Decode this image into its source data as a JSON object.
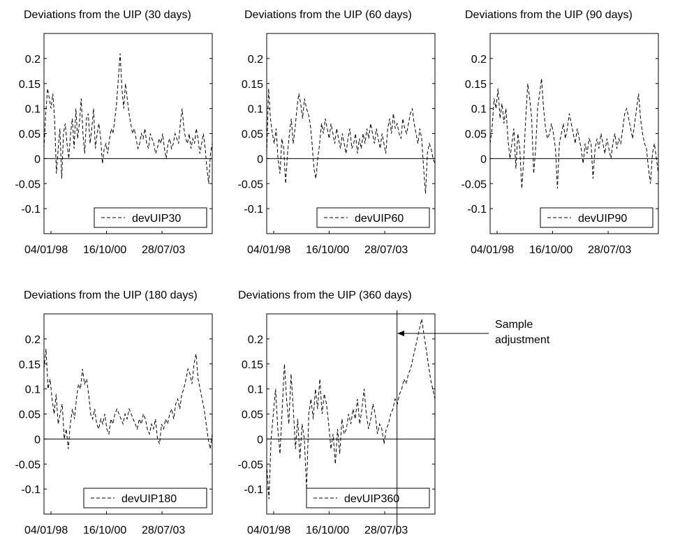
{
  "chart_data": [
    {
      "type": "line",
      "title": "Deviations from the UIP (30 days)",
      "xlabel": "",
      "ylabel": "",
      "xticks": [
        "04/01/98",
        "16/10/00",
        "28/07/03"
      ],
      "yticks": [
        "0.2",
        "0.15",
        "0.1",
        "0.05",
        "0",
        "-0.05",
        "-0.1"
      ],
      "ylim": [
        -0.15,
        0.25
      ],
      "grid": false,
      "legend_position": "bottom-right",
      "series": [
        {
          "name": "devUIP30",
          "style": "dashed",
          "values": [
            0.02,
            0.09,
            0.14,
            0.12,
            0.1,
            0.13,
            0.08,
            -0.03,
            0.02,
            0.06,
            -0.04,
            0.05,
            0.07,
            0.03,
            0.0,
            0.05,
            0.08,
            0.02,
            0.1,
            0.04,
            0.07,
            0.12,
            0.05,
            0.01,
            0.08,
            0.09,
            0.03,
            0.06,
            0.1,
            0.02,
            0.05,
            0.07,
            0.04,
            -0.01,
            0.02,
            0.03,
            0.01,
            0.04,
            0.06,
            0.05,
            0.08,
            0.11,
            0.16,
            0.21,
            0.14,
            0.1,
            0.15,
            0.12,
            0.09,
            0.07,
            0.05,
            0.06,
            0.04,
            0.02,
            0.03,
            0.05,
            0.04,
            0.06,
            0.03,
            0.02,
            0.05,
            0.04,
            0.03,
            0.01,
            0.02,
            0.04,
            0.03,
            0.05,
            0.02,
            0.0,
            0.03,
            0.04,
            0.02,
            0.03,
            0.05,
            0.04,
            0.03,
            0.07,
            0.1,
            0.06,
            0.04,
            0.03,
            0.05,
            0.02,
            0.04,
            0.03,
            0.06,
            0.04,
            0.01,
            0.03,
            0.05,
            0.02,
            -0.02,
            -0.05,
            0.01,
            0.03
          ]
        }
      ]
    },
    {
      "type": "line",
      "title": "Deviations from the UIP (60 days)",
      "xlabel": "",
      "ylabel": "",
      "xticks": [
        "04/01/98",
        "16/10/00",
        "28/07/03"
      ],
      "yticks": [
        "0.2",
        "0.15",
        "0.1",
        "0.05",
        "0",
        "-0.05",
        "-0.1"
      ],
      "ylim": [
        -0.15,
        0.25
      ],
      "grid": false,
      "legend_position": "bottom-right",
      "series": [
        {
          "name": "devUIP60",
          "style": "dashed",
          "values": [
            0.01,
            0.14,
            0.08,
            0.05,
            0.03,
            0.06,
            0.0,
            -0.03,
            0.04,
            0.02,
            -0.05,
            0.01,
            0.05,
            0.08,
            0.03,
            0.06,
            0.1,
            0.13,
            0.11,
            0.08,
            0.12,
            0.1,
            0.09,
            0.07,
            0.03,
            -0.02,
            -0.04,
            0.0,
            0.03,
            0.07,
            0.05,
            0.08,
            0.06,
            0.04,
            0.07,
            0.05,
            0.03,
            0.06,
            0.04,
            0.02,
            0.05,
            0.03,
            0.01,
            0.04,
            0.06,
            0.02,
            0.03,
            0.05,
            0.01,
            0.04,
            0.02,
            0.05,
            0.03,
            0.06,
            0.04,
            0.07,
            0.05,
            0.03,
            0.06,
            0.04,
            0.02,
            0.05,
            0.03,
            0.01,
            0.06,
            0.08,
            0.05,
            0.09,
            0.06,
            0.07,
            0.05,
            0.04,
            0.08,
            0.06,
            0.05,
            0.07,
            0.09,
            0.1,
            0.07,
            0.05,
            0.03,
            0.06,
            0.04,
            -0.02,
            -0.07,
            0.01,
            0.03,
            0.02,
            0.0,
            -0.01
          ]
        }
      ]
    },
    {
      "type": "line",
      "title": "Deviations from the UIP (90 days)",
      "xlabel": "",
      "ylabel": "",
      "xticks": [
        "04/01/98",
        "16/10/00",
        "28/07/03"
      ],
      "yticks": [
        "0.2",
        "0.15",
        "0.1",
        "0.05",
        "0",
        "-0.05",
        "-0.1"
      ],
      "ylim": [
        -0.15,
        0.25
      ],
      "grid": false,
      "legend_position": "bottom-right",
      "series": [
        {
          "name": "devUIP90",
          "style": "dashed",
          "values": [
            0.03,
            0.06,
            0.12,
            0.1,
            0.14,
            0.08,
            0.11,
            0.07,
            0.1,
            0.04,
            0.0,
            0.03,
            0.06,
            -0.02,
            0.05,
            0.02,
            -0.06,
            0.0,
            0.08,
            0.15,
            0.12,
            0.08,
            -0.03,
            0.02,
            0.1,
            0.13,
            0.16,
            0.1,
            0.06,
            0.04,
            0.05,
            0.07,
            0.05,
            0.02,
            -0.06,
            0.03,
            0.05,
            0.07,
            0.04,
            0.06,
            0.09,
            0.07,
            0.05,
            0.03,
            0.06,
            0.04,
            0.02,
            -0.01,
            0.03,
            0.01,
            0.04,
            0.03,
            -0.04,
            0.02,
            0.04,
            0.02,
            0.05,
            0.03,
            0.01,
            0.04,
            0.02,
            0.0,
            0.03,
            0.05,
            0.02,
            0.04,
            0.03,
            0.06,
            0.09,
            0.1,
            0.08,
            0.06,
            0.04,
            0.07,
            0.1,
            0.13,
            0.08,
            0.05,
            0.03,
            0.02,
            -0.02,
            -0.05,
            0.01,
            0.03,
            0.0,
            -0.03
          ]
        }
      ]
    },
    {
      "type": "line",
      "title": "Deviations from the UIP (180 days)",
      "xlabel": "",
      "ylabel": "",
      "xticks": [
        "04/01/98",
        "16/10/00",
        "28/07/03"
      ],
      "yticks": [
        "0.2",
        "0.15",
        "0.1",
        "0.05",
        "0",
        "-0.05",
        "-0.1"
      ],
      "ylim": [
        -0.15,
        0.25
      ],
      "grid": false,
      "legend_position": "bottom-right",
      "series": [
        {
          "name": "devUIP180",
          "style": "dashed",
          "values": [
            0.14,
            0.18,
            0.1,
            0.12,
            0.08,
            0.05,
            0.09,
            0.03,
            0.05,
            0.07,
            0.0,
            0.02,
            -0.02,
            0.03,
            0.06,
            0.04,
            0.08,
            0.11,
            0.1,
            0.14,
            0.11,
            0.12,
            0.09,
            0.05,
            0.04,
            0.06,
            0.03,
            0.02,
            0.04,
            0.03,
            0.05,
            0.02,
            0.01,
            0.04,
            0.03,
            0.05,
            0.06,
            0.05,
            0.04,
            0.03,
            0.05,
            0.04,
            0.06,
            0.05,
            0.04,
            0.03,
            0.02,
            0.04,
            0.03,
            0.05,
            0.04,
            0.02,
            0.01,
            0.03,
            0.02,
            0.04,
            0.0,
            -0.01,
            0.03,
            0.02,
            0.04,
            0.03,
            0.05,
            0.06,
            0.04,
            0.07,
            0.08,
            0.06,
            0.09,
            0.1,
            0.12,
            0.14,
            0.13,
            0.11,
            0.15,
            0.17,
            0.12,
            0.1,
            0.08,
            0.06,
            0.03,
            0.0,
            -0.02,
            0.01
          ]
        }
      ]
    },
    {
      "type": "line",
      "title": "Deviations from the UIP (360 days)",
      "xlabel": "",
      "ylabel": "",
      "xticks": [
        "04/01/98",
        "16/10/00",
        "28/07/03"
      ],
      "yticks": [
        "0.2",
        "0.15",
        "0.1",
        "0.05",
        "0",
        "-0.05",
        "-0.1"
      ],
      "ylim": [
        -0.15,
        0.25
      ],
      "grid": false,
      "legend_position": "bottom-right",
      "series": [
        {
          "name": "devUIP360",
          "style": "dashed",
          "values": [
            -0.05,
            -0.12,
            0.0,
            0.05,
            0.1,
            0.02,
            -0.03,
            0.06,
            0.15,
            0.08,
            0.03,
            0.13,
            0.06,
            -0.02,
            0.04,
            -0.04,
            0.03,
            0.0,
            -0.1,
            0.05,
            0.08,
            0.04,
            0.1,
            0.06,
            0.12,
            0.05,
            0.09,
            0.07,
            0.03,
            -0.02,
            0.01,
            -0.05,
            0.02,
            -0.03,
            0.04,
            0.01,
            0.02,
            0.05,
            0.03,
            0.06,
            0.04,
            0.08,
            0.03,
            0.06,
            0.1,
            0.05,
            0.02,
            0.04,
            0.07,
            0.05,
            0.01,
            0.03,
            0.02,
            -0.01,
            0.02,
            0.03,
            0.05,
            0.06,
            0.08,
            0.07,
            0.09,
            0.1,
            0.12,
            0.11,
            0.13,
            0.14,
            0.16,
            0.18,
            0.2,
            0.22,
            0.24,
            0.21,
            0.18,
            0.15,
            0.12,
            0.1,
            0.08
          ]
        }
      ],
      "vline_label": "Sample\nadjustment",
      "vline_fraction_of_series": 0.65
    }
  ],
  "annotation": {
    "line1": "Sample",
    "line2": "adjustment"
  }
}
